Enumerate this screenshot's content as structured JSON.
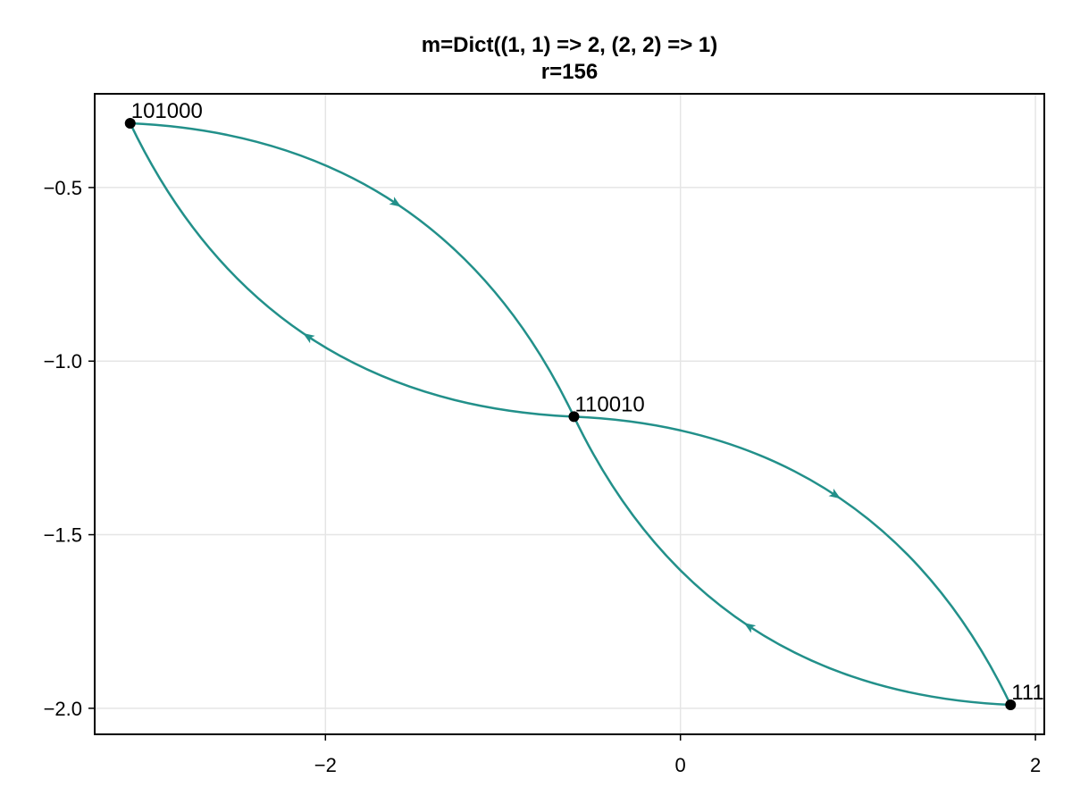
{
  "chart_data": {
    "type": "scatter",
    "title_lines": [
      "m=Dict((1, 1) => 2, (2, 2) => 1)",
      "r=156"
    ],
    "xlabel": "",
    "ylabel": "",
    "xlim": [
      -3.3,
      2.05
    ],
    "ylim": [
      -2.075,
      -0.23
    ],
    "xticks": [
      {
        "value": -2,
        "label": "−2"
      },
      {
        "value": 0,
        "label": "0"
      },
      {
        "value": 2,
        "label": "2"
      }
    ],
    "yticks": [
      {
        "value": -0.5,
        "label": "−0.5"
      },
      {
        "value": -1.0,
        "label": "−1.0"
      },
      {
        "value": -1.5,
        "label": "−1.5"
      },
      {
        "value": -2.0,
        "label": "−2.0"
      }
    ],
    "grid": true,
    "nodes": [
      {
        "label": "101000",
        "x": -3.1,
        "y": -0.315
      },
      {
        "label": "110010",
        "x": -0.6,
        "y": -1.16
      },
      {
        "label": "111",
        "x": 1.86,
        "y": -1.99
      }
    ],
    "edges": [
      {
        "from": 0,
        "to": 1,
        "bend": 0.3
      },
      {
        "from": 1,
        "to": 0,
        "bend": 0.3
      },
      {
        "from": 1,
        "to": 2,
        "bend": 0.3
      },
      {
        "from": 2,
        "to": 1,
        "bend": 0.3
      }
    ],
    "colors": {
      "edge": "#22908a",
      "node": "#000000",
      "grid": "#e5e5e5",
      "frame": "#000000"
    }
  }
}
